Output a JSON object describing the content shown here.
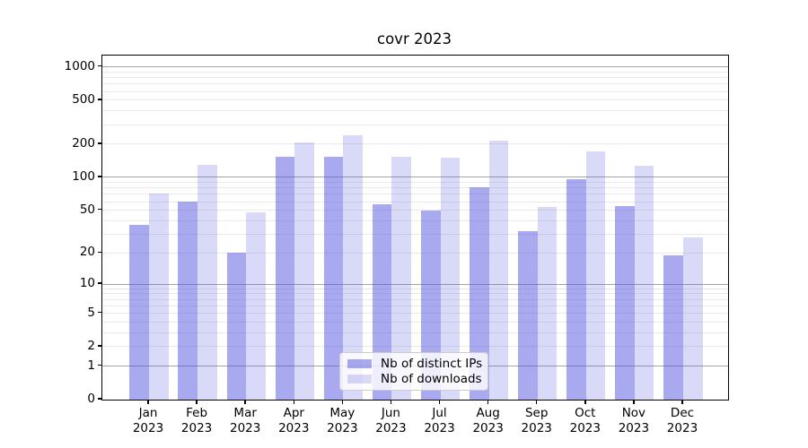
{
  "figure": {
    "background": "#ffffff",
    "axis_color": "#000000"
  },
  "chart_data": {
    "type": "bar",
    "title": "covr 2023",
    "categories": [
      "Jan",
      "Feb",
      "Mar",
      "Apr",
      "May",
      "Jun",
      "Jul",
      "Aug",
      "Sep",
      "Oct",
      "Nov",
      "Dec"
    ],
    "year_label": "2023",
    "series": [
      {
        "key": "distinct-ips",
        "name": "Nb of distinct IPs",
        "color": "rgba(83,83,225,0.50)",
        "values": [
          37,
          60,
          20,
          154,
          153,
          57,
          50,
          82,
          32,
          97,
          55,
          19
        ]
      },
      {
        "key": "downloads",
        "name": "Nb of downloads",
        "color": "rgba(83,83,225,0.22)",
        "values": [
          71,
          130,
          48,
          207,
          240,
          155,
          150,
          215,
          54,
          172,
          128,
          28
        ]
      }
    ],
    "y_scale": "log1p",
    "y_ticks": [
      0,
      1,
      2,
      5,
      10,
      20,
      50,
      100,
      200,
      500,
      1000
    ],
    "ylim": [
      0,
      1266
    ],
    "grid": {
      "minor_values": [
        2,
        3,
        4,
        5,
        6,
        7,
        8,
        9,
        20,
        30,
        40,
        50,
        60,
        70,
        80,
        90,
        200,
        300,
        400,
        500,
        600,
        700,
        800,
        900
      ],
      "major_values": [
        1,
        10,
        100,
        1000
      ],
      "minor_color": "#e9e9e9",
      "major_color": "#a3a3a3"
    },
    "legend_position": "lower center"
  }
}
